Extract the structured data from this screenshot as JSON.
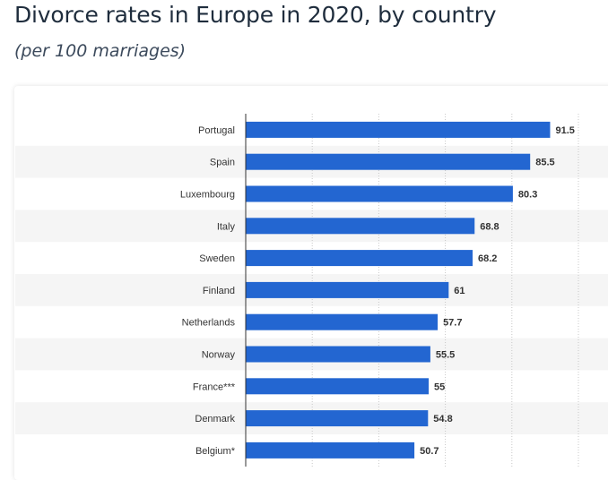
{
  "title": "Divorce rates in Europe in 2020, by country",
  "subtitle": "(per 100 marriages)",
  "chart_data": {
    "type": "bar",
    "orientation": "horizontal",
    "categories": [
      "Portugal",
      "Spain",
      "Luxembourg",
      "Italy",
      "Sweden",
      "Finland",
      "Netherlands",
      "Norway",
      "France***",
      "Denmark",
      "Belgium*"
    ],
    "values": [
      91.5,
      85.5,
      80.3,
      68.8,
      68.2,
      61,
      57.7,
      55.5,
      55,
      54.8,
      50.7
    ],
    "value_labels": [
      "91.5",
      "85.5",
      "80.3",
      "68.8",
      "68.2",
      "61",
      "57.7",
      "55.5",
      "55",
      "54.8",
      "50.7"
    ],
    "xlim": [
      0,
      100
    ],
    "grid": true,
    "bar_color": "#2366d1"
  }
}
